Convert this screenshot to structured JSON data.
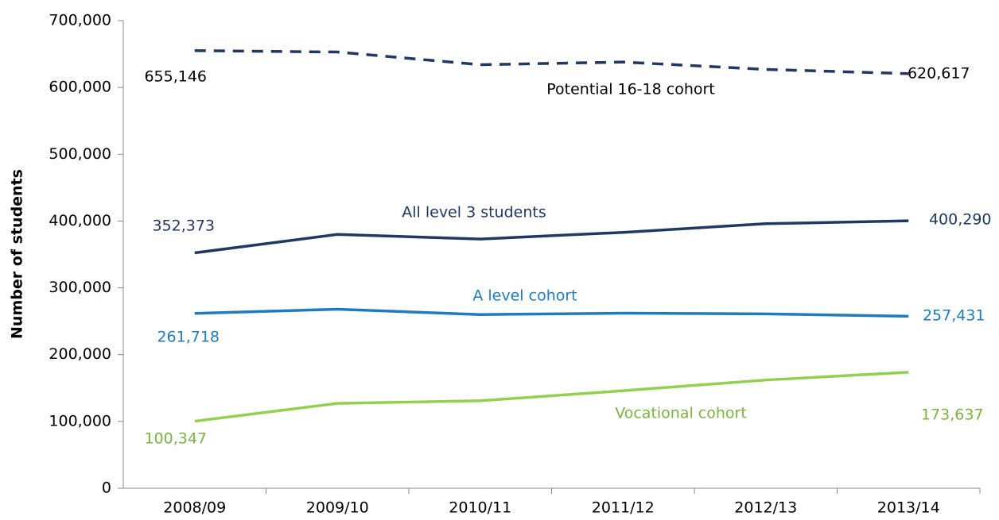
{
  "chart_data": {
    "type": "line",
    "y_label": "Number of students",
    "categories": [
      "2008/09",
      "2009/10",
      "2010/11",
      "2011/12",
      "2012/13",
      "2013/14"
    ],
    "series": [
      {
        "name": "Potential 16-18 cohort",
        "color": "#1f3864",
        "dashed": true,
        "values": [
          655146,
          653000,
          634000,
          638000,
          627000,
          620617
        ],
        "value_labels": [
          "655,146",
          null,
          null,
          null,
          null,
          "620,617"
        ]
      },
      {
        "name": "All level 3 students",
        "color": "#1f3864",
        "dashed": false,
        "values": [
          352373,
          380000,
          373000,
          383000,
          396000,
          400290
        ],
        "value_labels": [
          "352,373",
          null,
          null,
          null,
          null,
          "400,290"
        ]
      },
      {
        "name": "A level cohort",
        "color": "#1f7bc0",
        "dashed": false,
        "values": [
          261718,
          268000,
          260000,
          262000,
          261000,
          257431
        ],
        "value_labels": [
          "261,718",
          null,
          null,
          null,
          null,
          "257,431"
        ]
      },
      {
        "name": "Vocational cohort",
        "color": "#92d050",
        "dashed": false,
        "values": [
          100347,
          127000,
          131000,
          146000,
          162000,
          173637
        ],
        "value_labels": [
          "100,347",
          null,
          null,
          null,
          null,
          "173,637"
        ]
      }
    ],
    "ylim": [
      0,
      700000
    ],
    "yticks": [
      0,
      {
        "value": 100000,
        "label": "100,000"
      },
      {
        "value": 200000,
        "label": "200,000"
      },
      {
        "value": 300000,
        "label": "300,000"
      },
      {
        "value": 400000,
        "label": "400,000"
      },
      {
        "value": 500000,
        "label": "500,000"
      },
      {
        "value": 600000,
        "label": "600,000"
      },
      {
        "value": 700000,
        "label": "700,000"
      }
    ]
  }
}
